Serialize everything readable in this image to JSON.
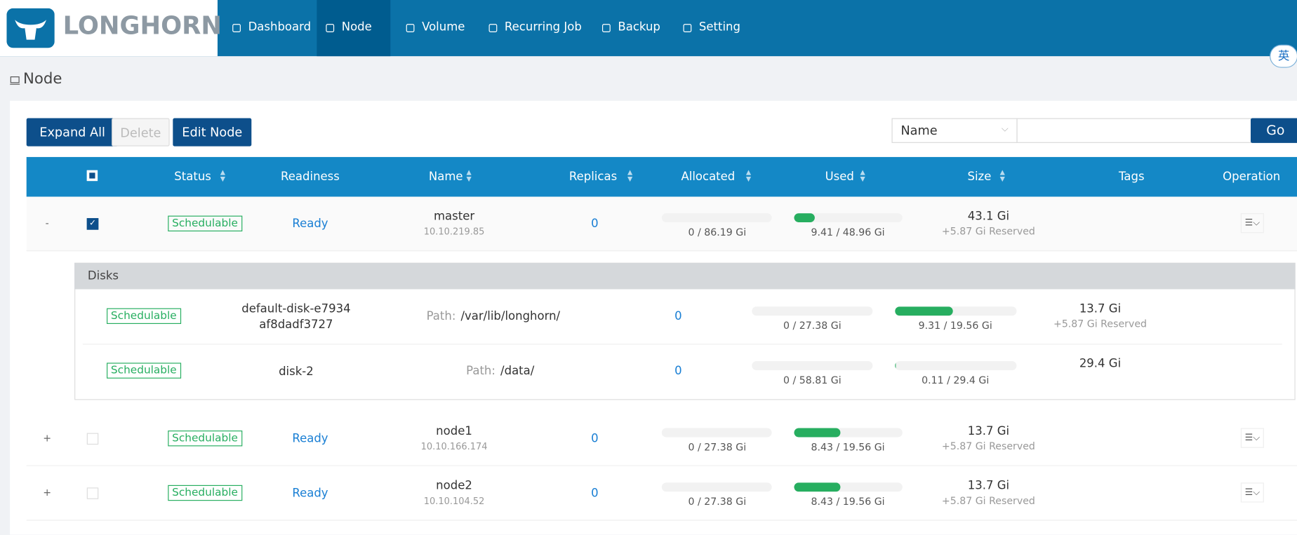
{
  "brand": "LONGHORN",
  "nav": [
    "Dashboard",
    "Node",
    "Volume",
    "Recurring Job",
    "Backup",
    "Setting"
  ],
  "nav_active": 1,
  "ime": "英",
  "page_title": "Node",
  "buttons": [
    "Expand All",
    "Delete",
    "Edit Node"
  ],
  "disabled_button": 1,
  "search": {
    "field": "Name",
    "button": "Go"
  },
  "table": {
    "columns": [
      {
        "label": "Status",
        "sortable": true
      },
      {
        "label": "Readiness",
        "sortable": false
      },
      {
        "label": "Name",
        "sortable": true
      },
      {
        "label": "Replicas",
        "sortable": true
      },
      {
        "label": "Allocated",
        "sortable": true
      },
      {
        "label": "Used",
        "sortable": true
      },
      {
        "label": "Size",
        "sortable": true
      },
      {
        "label": "Tags",
        "sortable": false
      },
      {
        "label": "Operation",
        "sortable": false
      }
    ],
    "rows": [
      {
        "toggle": "-",
        "checked": true,
        "status": "Schedulable",
        "readiness": "Ready",
        "name": "master",
        "ip": "10.10.219.85",
        "replicas": 0,
        "allocated": "0 / 86.19 Gi",
        "used": "9.41 / 48.96 Gi",
        "size": "43.1 Gi",
        "reserved": "+5.87 Gi Reserved",
        "disks": {
          "title": "Disks",
          "path_label": "Path:",
          "rows": [
            {
              "status": "Schedulable",
              "name": "default-disk-e7934af8dadf3727",
              "path": "/var/lib/longhorn/",
              "replicas": 0,
              "allocated": "0 / 27.38 Gi",
              "used": "9.31 / 19.56 Gi",
              "size": "13.7 Gi",
              "reserved": "+5.87 Gi Reserved"
            },
            {
              "status": "Schedulable",
              "name": "disk-2",
              "path": "/data/",
              "replicas": 0,
              "allocated": "0 / 58.81 Gi",
              "used": "0.11 / 29.4 Gi",
              "size": "29.4 Gi"
            }
          ]
        }
      },
      {
        "toggle": "+",
        "checked": false,
        "status": "Schedulable",
        "readiness": "Ready",
        "name": "node1",
        "ip": "10.10.166.174",
        "replicas": 0,
        "allocated": "0 / 27.38 Gi",
        "used": "8.43 / 19.56 Gi",
        "size": "13.7 Gi",
        "reserved": "+5.87 Gi Reserved"
      },
      {
        "toggle": "+",
        "checked": false,
        "status": "Schedulable",
        "readiness": "Ready",
        "name": "node2",
        "ip": "10.10.104.52",
        "replicas": 0,
        "allocated": "0 / 27.38 Gi",
        "used": "8.43 / 19.56 Gi",
        "size": "13.7 Gi",
        "reserved": "+5.87 Gi Reserved"
      }
    ]
  }
}
